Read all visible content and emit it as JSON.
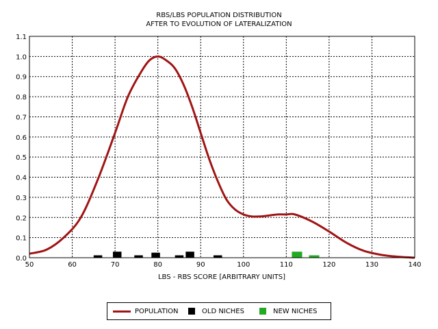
{
  "chart_data": {
    "type": "line",
    "title": "RBS/LBS POPULATION DISTRIBUTION",
    "subtitle": "AFTER TO EVOLUTION OF LATERALIZATION",
    "xlabel": "LBS - RBS SCORE [ARBITRARY UNITS]",
    "ylabel": "",
    "xlim": [
      50,
      140
    ],
    "ylim": [
      0,
      1.1
    ],
    "x_ticks": [
      "50",
      "60",
      "70",
      "80",
      "90",
      "100",
      "110",
      "120",
      "130",
      "140"
    ],
    "y_ticks": [
      "0.0",
      "0.1",
      "0.2",
      "0.3",
      "0.4",
      "0.5",
      "0.6",
      "0.7",
      "0.8",
      "0.9",
      "1.0",
      "1.1"
    ],
    "grid": true,
    "legend_position": "bottom-center",
    "series": [
      {
        "name": "POPULATION",
        "kind": "line",
        "color": "#a01414",
        "x": [
          50,
          54,
          58,
          62,
          66,
          70,
          73,
          76,
          78,
          80,
          82,
          84,
          86,
          88,
          90,
          92,
          94,
          96,
          98,
          100,
          102,
          104,
          106,
          108,
          110,
          112,
          116,
          120,
          124,
          128,
          132,
          136,
          140
        ],
        "y": [
          0.02,
          0.04,
          0.1,
          0.2,
          0.39,
          0.62,
          0.8,
          0.92,
          0.98,
          1.0,
          0.98,
          0.94,
          0.86,
          0.75,
          0.62,
          0.49,
          0.38,
          0.29,
          0.24,
          0.215,
          0.205,
          0.205,
          0.21,
          0.215,
          0.215,
          0.215,
          0.18,
          0.13,
          0.075,
          0.035,
          0.015,
          0.005,
          0.0
        ]
      },
      {
        "name": "OLD NICHES",
        "kind": "bar",
        "color": "#000000",
        "bar_width": 2,
        "x": [
          66,
          70.5,
          75.5,
          79.5,
          85,
          87.5,
          94
        ],
        "y": [
          0.012,
          0.03,
          0.012,
          0.025,
          0.012,
          0.03,
          0.012
        ]
      },
      {
        "name": "NEW NICHES",
        "kind": "bar",
        "color": "#22aa22",
        "bar_width": 2.4,
        "x": [
          112.5,
          116.5
        ],
        "y": [
          0.03,
          0.012
        ]
      }
    ]
  }
}
